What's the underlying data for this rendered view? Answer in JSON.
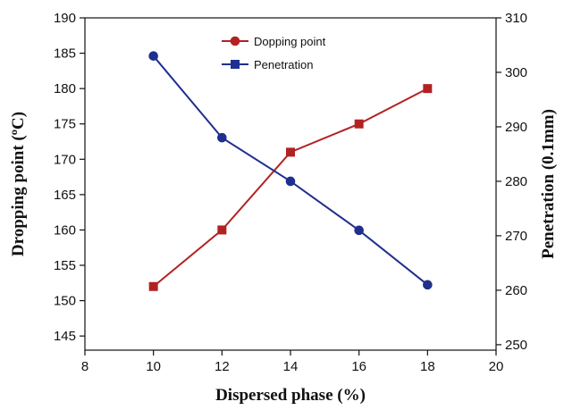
{
  "chart_data": {
    "type": "line",
    "x": [
      10,
      12,
      14,
      16,
      18
    ],
    "xlim": [
      8,
      20
    ],
    "ylim_left": [
      143,
      190
    ],
    "ylim_right": [
      249,
      310
    ],
    "xlabel": "Dispersed phase (%)",
    "ylabel_left": "Dropping point (ºC)",
    "ylabel_right": "Penetration (0.1mm)",
    "x_ticks": [
      8,
      10,
      12,
      14,
      16,
      18,
      20
    ],
    "y_left_ticks": [
      145,
      150,
      155,
      160,
      165,
      170,
      175,
      180,
      185,
      190
    ],
    "y_right_ticks": [
      250,
      260,
      270,
      280,
      290,
      300,
      310
    ],
    "legend_position": "top-center",
    "series": [
      {
        "name": "Dopping point",
        "axis": "left",
        "color": "#b22222",
        "line_marker": "circle",
        "data_marker": "square",
        "values": [
          152,
          160,
          171,
          175,
          180
        ]
      },
      {
        "name": "Penetration",
        "axis": "right",
        "color": "#1f2f8f",
        "line_marker": "square",
        "data_marker": "circle",
        "values": [
          303,
          288,
          280,
          271,
          261
        ]
      }
    ]
  }
}
